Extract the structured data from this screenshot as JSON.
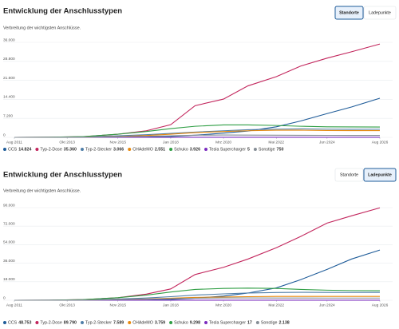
{
  "chart_data": [
    {
      "type": "line",
      "title": "Entwicklung der Anschlusstypen",
      "subtitle": "Verbreitung der wichtigsten Anschlüsse.",
      "tabs": [
        {
          "label": "Standorte",
          "active": true
        },
        {
          "label": "Ladepunkte",
          "active": false
        }
      ],
      "x": [
        "2011-08",
        "2013-01",
        "2014-06",
        "2015-11",
        "2017-01",
        "2018-01",
        "2019-01",
        "2020-03",
        "2021-03",
        "2022-05",
        "2023-05",
        "2024-06",
        "2025-06",
        "2026-08"
      ],
      "xlim": [
        "2011-08",
        "2026-08"
      ],
      "xticks": [
        {
          "value": "2011-08",
          "label": "Aug 2011"
        },
        {
          "value": "2013-10",
          "label": "Okt 2013"
        },
        {
          "value": "2015-11",
          "label": "Nov 2015"
        },
        {
          "value": "2018-01",
          "label": "Jan 2018"
        },
        {
          "value": "2020-03",
          "label": "Mrz 2020"
        },
        {
          "value": "2022-05",
          "label": "Mai 2022"
        },
        {
          "value": "2024-06",
          "label": "Jun 2024"
        },
        {
          "value": "2026-08",
          "label": "Aug 2026"
        }
      ],
      "ylim": [
        0,
        36000
      ],
      "yticks": [
        0,
        {
          "value": 7200,
          "label": "7.200"
        },
        {
          "value": 14400,
          "label": "14.400"
        },
        {
          "value": 21600,
          "label": "21.600"
        },
        {
          "value": 28800,
          "label": "28.800"
        },
        {
          "value": 36000,
          "label": "36.000"
        }
      ],
      "grid": true,
      "series": [
        {
          "name": "CCS",
          "color": "#1f5c99",
          "total": {
            "value": 14824,
            "label": "14.824"
          },
          "values": [
            0,
            0,
            0,
            20,
            100,
            300,
            800,
            1600,
            2400,
            4000,
            6200,
            9000,
            11500,
            14824
          ]
        },
        {
          "name": "Typ-2-Dose",
          "color": "#c2255c",
          "total": {
            "value": 35360,
            "label": "35.360"
          },
          "values": [
            0,
            50,
            250,
            1200,
            2500,
            4800,
            12000,
            14500,
            19500,
            23000,
            27000,
            30000,
            32400,
            35360
          ]
        },
        {
          "name": "Typ-2-Stecker",
          "color": "#4f7ea8",
          "total": {
            "value": 3066,
            "label": "3.066"
          },
          "values": [
            0,
            20,
            200,
            600,
            1000,
            1500,
            2000,
            2500,
            2900,
            3100,
            3200,
            3100,
            3050,
            3066
          ]
        },
        {
          "name": "CHAdeMO",
          "color": "#e8890c",
          "total": {
            "value": 2551,
            "label": "2.551"
          },
          "values": [
            0,
            0,
            50,
            300,
            700,
            1200,
            1800,
            2200,
            2500,
            2700,
            2700,
            2600,
            2550,
            2551
          ]
        },
        {
          "name": "Schuko",
          "color": "#2f9e44",
          "total": {
            "value": 3926,
            "label": "3.926"
          },
          "values": [
            0,
            50,
            300,
            1200,
            2200,
            3300,
            4200,
            4700,
            4700,
            4500,
            4200,
            4000,
            3950,
            3926
          ]
        },
        {
          "name": "Tesla Supercharger",
          "color": "#7b2cbf",
          "total": {
            "value": 5,
            "label": "5"
          },
          "values": [
            0,
            0,
            0,
            2,
            3,
            4,
            5,
            5,
            5,
            5,
            5,
            5,
            5,
            5
          ]
        },
        {
          "name": "Sonstige",
          "color": "#868e96",
          "total": {
            "value": 750,
            "label": "750"
          },
          "values": [
            0,
            10,
            50,
            200,
            400,
            600,
            800,
            900,
            850,
            800,
            780,
            760,
            750,
            750
          ]
        }
      ]
    },
    {
      "type": "line",
      "title": "Entwicklung der Anschlusstypen",
      "subtitle": "Verbreitung der wichtigsten Anschlüsse.",
      "tabs": [
        {
          "label": "Standorte",
          "active": false
        },
        {
          "label": "Ladepunkte",
          "active": true
        }
      ],
      "x": [
        "2011-08",
        "2013-01",
        "2014-06",
        "2015-11",
        "2017-01",
        "2018-01",
        "2019-01",
        "2020-03",
        "2021-03",
        "2022-05",
        "2023-05",
        "2024-06",
        "2025-06",
        "2026-08"
      ],
      "xlim": [
        "2011-08",
        "2026-08"
      ],
      "xticks": [
        {
          "value": "2011-08",
          "label": "Aug 2011"
        },
        {
          "value": "2013-10",
          "label": "Okt 2013"
        },
        {
          "value": "2015-11",
          "label": "Nov 2015"
        },
        {
          "value": "2018-01",
          "label": "Jan 2018"
        },
        {
          "value": "2020-03",
          "label": "Mrz 2020"
        },
        {
          "value": "2022-05",
          "label": "Mai 2022"
        },
        {
          "value": "2024-06",
          "label": "Jun 2024"
        },
        {
          "value": "2026-08",
          "label": "Aug 2026"
        }
      ],
      "ylim": [
        0,
        90000
      ],
      "yticks": [
        0,
        {
          "value": 18000,
          "label": "18.000"
        },
        {
          "value": 36000,
          "label": "36.000"
        },
        {
          "value": 54000,
          "label": "54.000"
        },
        {
          "value": 72000,
          "label": "72.000"
        },
        {
          "value": 90000,
          "label": "90.000"
        }
      ],
      "grid": true,
      "series": [
        {
          "name": "CCS",
          "color": "#1f5c99",
          "total": {
            "value": 48753,
            "label": "48.753"
          },
          "values": [
            0,
            0,
            0,
            40,
            200,
            700,
            2000,
            4000,
            7000,
            12000,
            20000,
            30000,
            40000,
            48753
          ]
        },
        {
          "name": "Typ-2-Dose",
          "color": "#c2255c",
          "total": {
            "value": 89790,
            "label": "89.790"
          },
          "values": [
            0,
            100,
            600,
            2500,
            6000,
            11000,
            25000,
            32000,
            40000,
            51000,
            62000,
            75000,
            82000,
            89790
          ]
        },
        {
          "name": "Typ-2-Stecker",
          "color": "#4f7ea8",
          "total": {
            "value": 7589,
            "label": "7.589"
          },
          "values": [
            0,
            50,
            400,
            1200,
            2200,
            3500,
            5000,
            6200,
            7000,
            7500,
            7700,
            7600,
            7600,
            7589
          ]
        },
        {
          "name": "CHAdeMO",
          "color": "#e8890c",
          "total": {
            "value": 3759,
            "label": "3.759"
          },
          "values": [
            0,
            0,
            100,
            500,
            1200,
            2000,
            2800,
            3200,
            3500,
            3700,
            3750,
            3760,
            3760,
            3759
          ]
        },
        {
          "name": "Schuko",
          "color": "#2f9e44",
          "total": {
            "value": 9298,
            "label": "9.298"
          },
          "values": [
            0,
            100,
            600,
            2500,
            5000,
            8000,
            10500,
            11500,
            11800,
            11500,
            10500,
            9800,
            9400,
            9298
          ]
        },
        {
          "name": "Tesla Supercharger",
          "color": "#7b2cbf",
          "total": {
            "value": 17,
            "label": "17"
          },
          "values": [
            0,
            0,
            0,
            5,
            8,
            10,
            12,
            14,
            15,
            16,
            17,
            17,
            17,
            17
          ]
        },
        {
          "name": "Sonstige",
          "color": "#868e96",
          "total": {
            "value": 2138,
            "label": "2.138"
          },
          "values": [
            0,
            30,
            150,
            500,
            1000,
            1500,
            2000,
            2300,
            2300,
            2200,
            2150,
            2140,
            2138,
            2138
          ]
        }
      ]
    }
  ]
}
